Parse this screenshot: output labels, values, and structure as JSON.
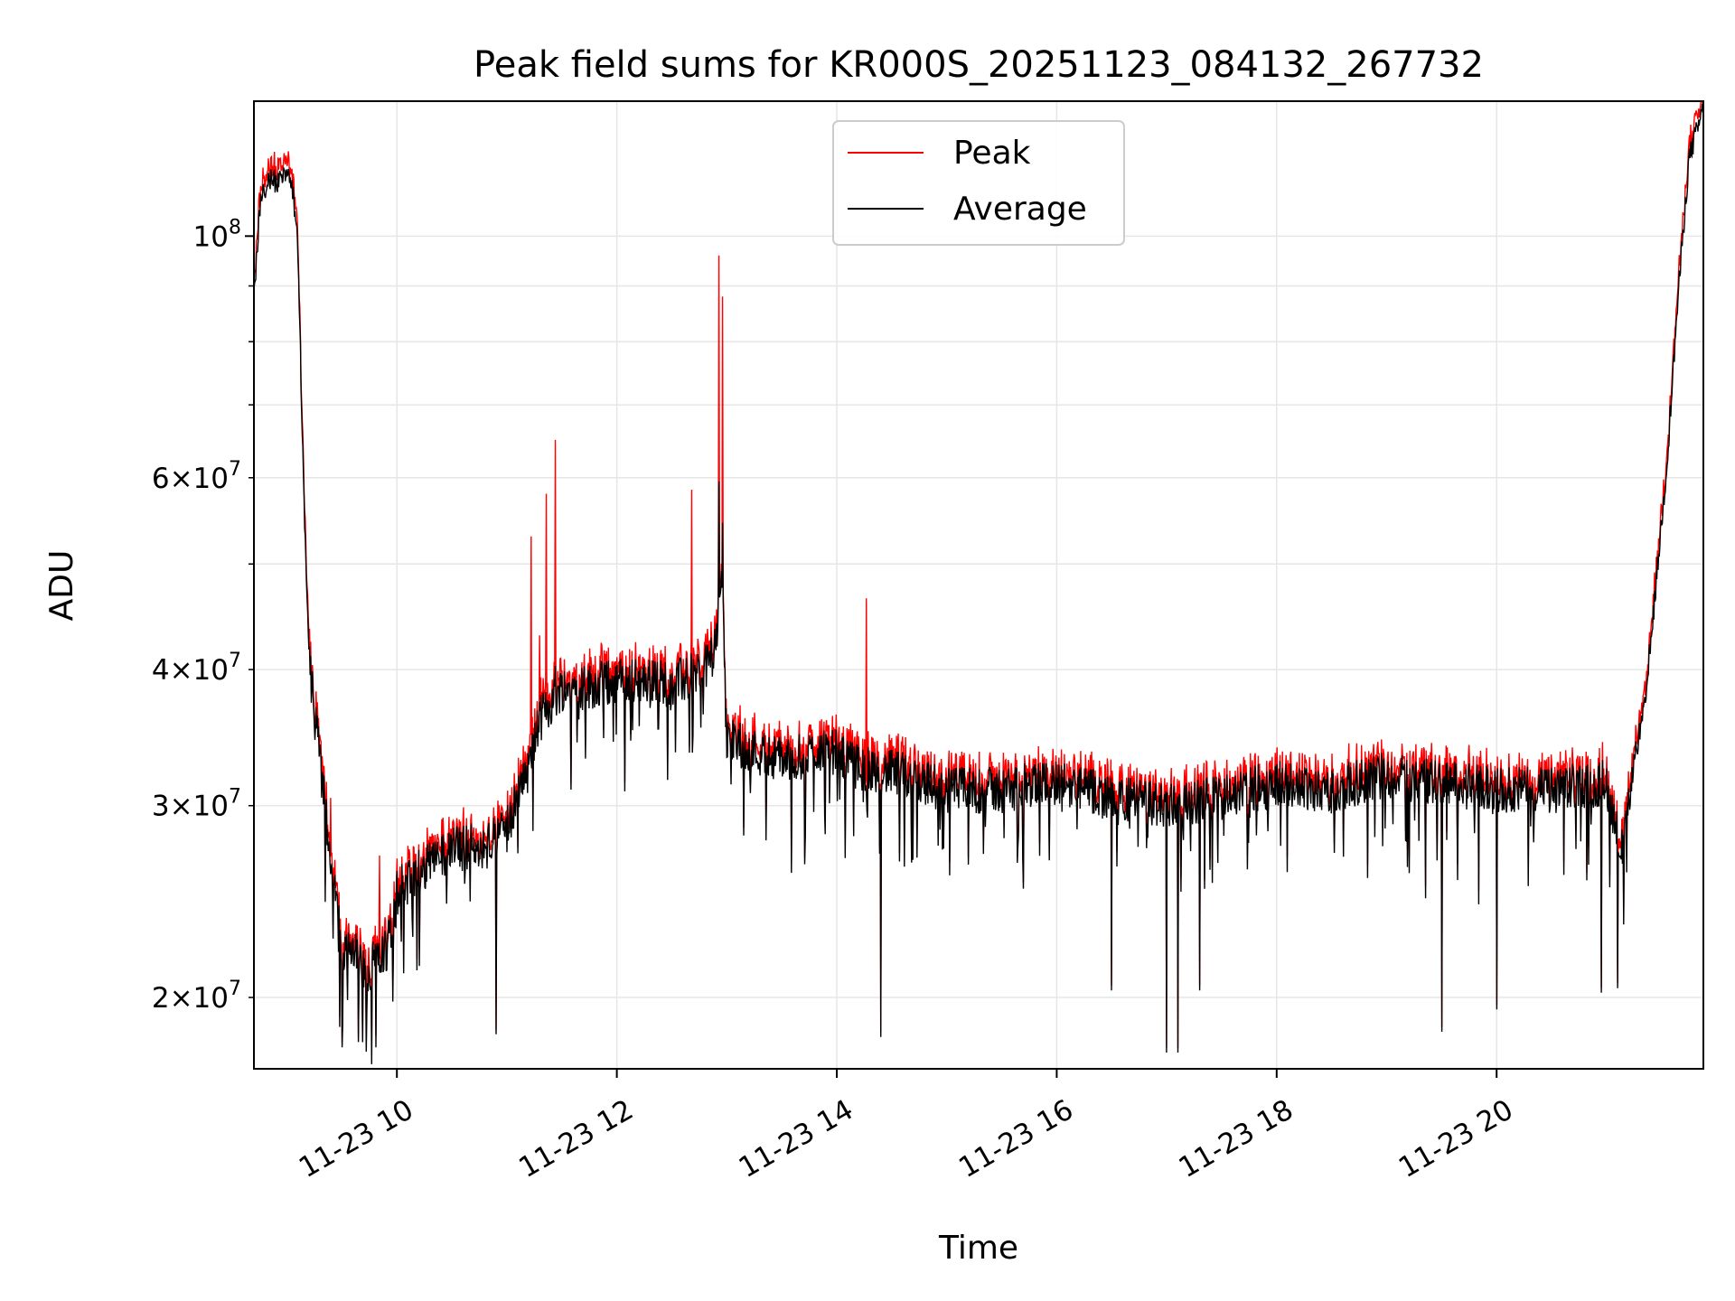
{
  "chart_data": {
    "type": "line",
    "title": "Peak field sums for KR000S_20251123_084132_267732",
    "xlabel": "Time",
    "ylabel": "ADU",
    "yscale": "log",
    "xlim_hours": [
      8.7,
      21.88
    ],
    "ylim": [
      17200000,
      133000000
    ],
    "grid": true,
    "legend_location": "upper center",
    "colors": {
      "peak": "#ff0000",
      "average": "#000000",
      "grid": "#e6e6e6"
    },
    "x_ticks": [
      {
        "value": 10,
        "label": "11-23 10"
      },
      {
        "value": 12,
        "label": "11-23 12"
      },
      {
        "value": 14,
        "label": "11-23 14"
      },
      {
        "value": 16,
        "label": "11-23 16"
      },
      {
        "value": 18,
        "label": "11-23 18"
      },
      {
        "value": 20,
        "label": "11-23 20"
      }
    ],
    "y_major_ticks": [
      {
        "value": 100000000,
        "mantissa": "",
        "exponent": "8"
      }
    ],
    "y_minor_ticks": [
      {
        "value": 20000000,
        "mantissa": "2",
        "exponent": "7"
      },
      {
        "value": 30000000,
        "mantissa": "3",
        "exponent": "7"
      },
      {
        "value": 40000000,
        "mantissa": "4",
        "exponent": "7"
      },
      {
        "value": 60000000,
        "mantissa": "6",
        "exponent": "7"
      }
    ],
    "y_minor_unlabeled": [
      50000000,
      70000000,
      80000000,
      90000000
    ],
    "series": [
      {
        "name": "Peak",
        "profile": [
          [
            8.7,
            88000000
          ],
          [
            8.76,
            108000000
          ],
          [
            8.85,
            113000000
          ],
          [
            8.9,
            112000000
          ],
          [
            8.98,
            115000000
          ],
          [
            9.05,
            110000000
          ],
          [
            9.1,
            98000000
          ],
          [
            9.15,
            60000000
          ],
          [
            9.2,
            41000000
          ],
          [
            9.3,
            33000000
          ],
          [
            9.4,
            27000000
          ],
          [
            9.5,
            22000000
          ],
          [
            9.6,
            22500000
          ],
          [
            9.7,
            21000000
          ],
          [
            9.8,
            21500000
          ],
          [
            9.9,
            22000000
          ],
          [
            10.0,
            25000000
          ],
          [
            10.2,
            26000000
          ],
          [
            10.4,
            27000000
          ],
          [
            10.6,
            27500000
          ],
          [
            10.8,
            27500000
          ],
          [
            11.0,
            28500000
          ],
          [
            11.1,
            31000000
          ],
          [
            11.2,
            32500000
          ],
          [
            11.3,
            36000000
          ],
          [
            11.5,
            38500000
          ],
          [
            11.7,
            38500000
          ],
          [
            12.0,
            39000000
          ],
          [
            12.3,
            39000000
          ],
          [
            12.6,
            39000000
          ],
          [
            12.8,
            40000000
          ],
          [
            12.9,
            42000000
          ],
          [
            12.95,
            50000000
          ],
          [
            13.0,
            34500000
          ],
          [
            13.3,
            33500000
          ],
          [
            13.6,
            33000000
          ],
          [
            13.9,
            34000000
          ],
          [
            14.2,
            32500000
          ],
          [
            14.6,
            32000000
          ],
          [
            15.0,
            31000000
          ],
          [
            15.5,
            31000000
          ],
          [
            16.0,
            31500000
          ],
          [
            16.5,
            30500000
          ],
          [
            17.0,
            30000000
          ],
          [
            17.5,
            30500000
          ],
          [
            18.0,
            31500000
          ],
          [
            18.5,
            31000000
          ],
          [
            19.0,
            32000000
          ],
          [
            19.5,
            31500000
          ],
          [
            20.0,
            31000000
          ],
          [
            20.5,
            31000000
          ],
          [
            21.0,
            31500000
          ],
          [
            21.15,
            27000000
          ],
          [
            21.25,
            33000000
          ],
          [
            21.35,
            37000000
          ],
          [
            21.45,
            48000000
          ],
          [
            21.55,
            62000000
          ],
          [
            21.65,
            88000000
          ],
          [
            21.75,
            118000000
          ],
          [
            21.88,
            131000000
          ]
        ],
        "spikes": [
          [
            9.4,
            30500000
          ],
          [
            11.22,
            53000000
          ],
          [
            11.3,
            43000000
          ],
          [
            11.36,
            58000000
          ],
          [
            11.44,
            65000000
          ],
          [
            12.68,
            58500000
          ],
          [
            12.93,
            96000000
          ],
          [
            12.96,
            88000000
          ],
          [
            14.27,
            46500000
          ],
          [
            9.84,
            27000000
          ]
        ]
      },
      {
        "name": "Average",
        "dips": [
          [
            9.5,
            18000000
          ],
          [
            9.65,
            18200000
          ],
          [
            10.9,
            18500000
          ],
          [
            14.4,
            18400000
          ],
          [
            17.0,
            17800000
          ],
          [
            17.1,
            17800000
          ],
          [
            19.5,
            18600000
          ],
          [
            16.5,
            20300000
          ],
          [
            20.0,
            19500000
          ],
          [
            17.3,
            20300000
          ],
          [
            20.95,
            20200000
          ],
          [
            21.1,
            20400000
          ]
        ]
      }
    ]
  },
  "legend": [
    {
      "label": "Peak",
      "color": "#ff0000"
    },
    {
      "label": "Average",
      "color": "#000000"
    }
  ]
}
